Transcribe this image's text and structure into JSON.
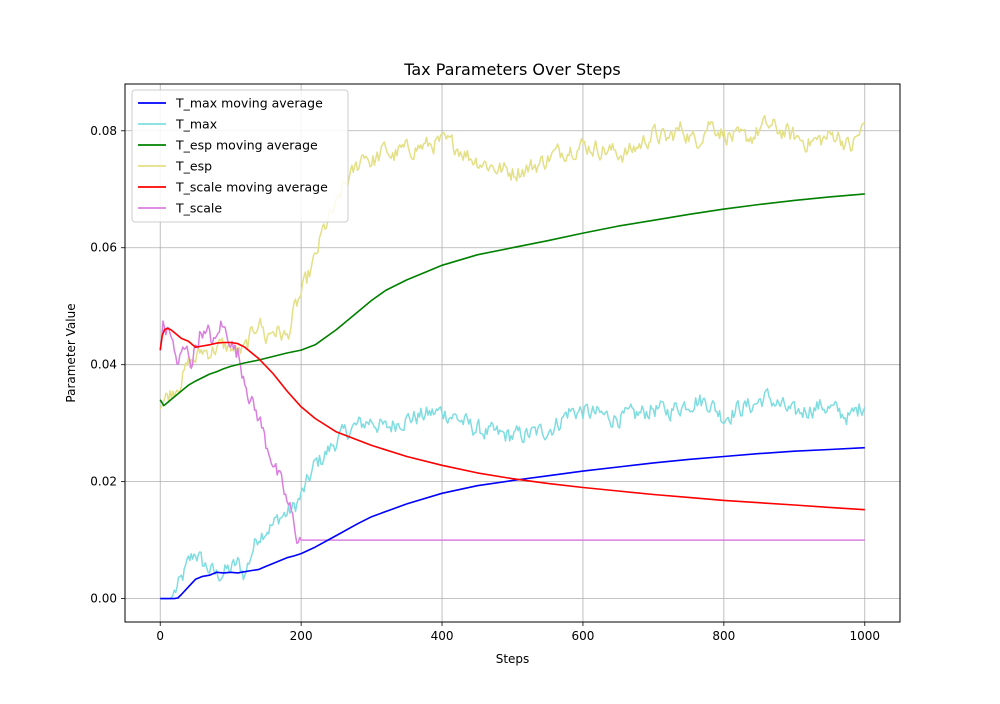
{
  "chart_data": {
    "type": "line",
    "title": "Tax Parameters Over Steps",
    "xlabel": "Steps",
    "ylabel": "Parameter Value",
    "xlim": [
      -50,
      1050
    ],
    "ylim": [
      -0.004,
      0.088
    ],
    "xticks": [
      0,
      200,
      400,
      600,
      800,
      1000
    ],
    "xtick_labels": [
      "0",
      "200",
      "400",
      "600",
      "800",
      "1000"
    ],
    "yticks": [
      0.0,
      0.02,
      0.04,
      0.06,
      0.08
    ],
    "ytick_labels": [
      "0.00",
      "0.02",
      "0.04",
      "0.06",
      "0.08"
    ],
    "grid": true,
    "legend_position": "top-left",
    "series": [
      {
        "name": "T_max moving average",
        "color": "#0000ff",
        "style": "smooth",
        "x": [
          0,
          10,
          20,
          25,
          30,
          40,
          50,
          60,
          70,
          80,
          90,
          100,
          110,
          120,
          130,
          140,
          150,
          160,
          170,
          180,
          190,
          200,
          220,
          250,
          280,
          300,
          350,
          400,
          450,
          500,
          550,
          600,
          650,
          700,
          750,
          800,
          850,
          900,
          950,
          1000
        ],
        "y": [
          0.0,
          0.0,
          0.0,
          0.0001,
          0.0007,
          0.002,
          0.0033,
          0.0038,
          0.004,
          0.0045,
          0.0044,
          0.0045,
          0.0044,
          0.0046,
          0.0048,
          0.005,
          0.0055,
          0.006,
          0.0065,
          0.007,
          0.0073,
          0.0077,
          0.0088,
          0.0108,
          0.0128,
          0.014,
          0.0162,
          0.018,
          0.0193,
          0.0202,
          0.021,
          0.0218,
          0.0225,
          0.0232,
          0.0238,
          0.0243,
          0.0248,
          0.0252,
          0.0255,
          0.0258
        ]
      },
      {
        "name": "T_max",
        "color": "#7fdde0",
        "style": "noisy",
        "x": [
          0,
          15,
          20,
          30,
          40,
          50,
          60,
          70,
          80,
          90,
          100,
          110,
          120,
          130,
          140,
          150,
          160,
          170,
          180,
          190,
          200,
          210,
          220,
          230,
          240,
          250,
          260,
          270,
          280,
          290,
          300,
          320,
          340,
          360,
          380,
          400,
          420,
          440,
          460,
          480,
          500,
          520,
          540,
          560,
          580,
          600,
          620,
          640,
          660,
          680,
          700,
          720,
          740,
          760,
          780,
          800,
          820,
          840,
          860,
          880,
          900,
          920,
          940,
          960,
          980,
          1000
        ],
        "y": [
          0.0,
          0.0,
          0.001,
          0.003,
          0.006,
          0.008,
          0.006,
          0.005,
          0.004,
          0.0045,
          0.005,
          0.006,
          0.004,
          0.008,
          0.011,
          0.012,
          0.0125,
          0.014,
          0.0145,
          0.0155,
          0.0175,
          0.02,
          0.023,
          0.024,
          0.0255,
          0.027,
          0.028,
          0.029,
          0.0295,
          0.03,
          0.0305,
          0.029,
          0.0305,
          0.031,
          0.0315,
          0.032,
          0.031,
          0.0295,
          0.0285,
          0.028,
          0.0278,
          0.028,
          0.0285,
          0.0295,
          0.032,
          0.032,
          0.0315,
          0.031,
          0.031,
          0.0315,
          0.0325,
          0.032,
          0.033,
          0.034,
          0.0335,
          0.031,
          0.0325,
          0.033,
          0.0345,
          0.033,
          0.0315,
          0.0325,
          0.033,
          0.032,
          0.031,
          0.0335
        ]
      },
      {
        "name": "T_esp moving average",
        "color": "#008000",
        "style": "smooth",
        "x": [
          0,
          5,
          10,
          20,
          30,
          40,
          50,
          60,
          70,
          80,
          90,
          100,
          120,
          140,
          160,
          180,
          200,
          220,
          250,
          280,
          300,
          320,
          350,
          380,
          400,
          450,
          500,
          550,
          600,
          650,
          700,
          750,
          800,
          850,
          900,
          950,
          1000
        ],
        "y": [
          0.034,
          0.033,
          0.0335,
          0.0345,
          0.0355,
          0.0365,
          0.0372,
          0.0378,
          0.0384,
          0.0388,
          0.0393,
          0.0397,
          0.0403,
          0.0408,
          0.0414,
          0.042,
          0.0425,
          0.0434,
          0.046,
          0.049,
          0.051,
          0.0527,
          0.0545,
          0.056,
          0.057,
          0.0588,
          0.06,
          0.0612,
          0.0625,
          0.0637,
          0.0647,
          0.0657,
          0.0666,
          0.0674,
          0.0681,
          0.0687,
          0.0692
        ]
      },
      {
        "name": "T_esp",
        "color": "#e3e085",
        "style": "noisy",
        "x": [
          0,
          10,
          20,
          30,
          40,
          50,
          60,
          70,
          80,
          90,
          100,
          110,
          120,
          130,
          140,
          150,
          160,
          170,
          180,
          190,
          200,
          210,
          220,
          230,
          240,
          250,
          260,
          270,
          280,
          290,
          300,
          310,
          320,
          330,
          340,
          360,
          380,
          400,
          420,
          440,
          460,
          480,
          500,
          520,
          540,
          560,
          580,
          600,
          620,
          640,
          660,
          680,
          700,
          720,
          740,
          760,
          780,
          800,
          820,
          840,
          860,
          880,
          900,
          920,
          940,
          960,
          980,
          1000
        ],
        "y": [
          0.0335,
          0.0345,
          0.036,
          0.0375,
          0.04,
          0.041,
          0.0425,
          0.0422,
          0.043,
          0.0432,
          0.043,
          0.042,
          0.0425,
          0.045,
          0.048,
          0.0445,
          0.046,
          0.0455,
          0.0445,
          0.049,
          0.052,
          0.055,
          0.058,
          0.0625,
          0.065,
          0.067,
          0.0705,
          0.072,
          0.074,
          0.0765,
          0.0745,
          0.0755,
          0.077,
          0.0755,
          0.0765,
          0.077,
          0.0775,
          0.078,
          0.0775,
          0.0755,
          0.0745,
          0.0735,
          0.073,
          0.0735,
          0.0745,
          0.076,
          0.077,
          0.0775,
          0.077,
          0.0765,
          0.076,
          0.0775,
          0.0795,
          0.0785,
          0.0805,
          0.078,
          0.0815,
          0.0795,
          0.0785,
          0.079,
          0.081,
          0.08,
          0.079,
          0.078,
          0.0785,
          0.0795,
          0.077,
          0.081
        ]
      },
      {
        "name": "T_scale moving average",
        "color": "#ff0000",
        "style": "smooth",
        "x": [
          0,
          3,
          6,
          10,
          15,
          20,
          30,
          40,
          50,
          60,
          70,
          80,
          90,
          100,
          110,
          120,
          140,
          160,
          180,
          200,
          220,
          250,
          300,
          350,
          400,
          450,
          500,
          550,
          600,
          650,
          700,
          750,
          800,
          850,
          900,
          950,
          1000
        ],
        "y": [
          0.0425,
          0.045,
          0.046,
          0.0462,
          0.046,
          0.0455,
          0.0445,
          0.044,
          0.043,
          0.0432,
          0.0434,
          0.0437,
          0.0438,
          0.0438,
          0.0436,
          0.043,
          0.041,
          0.0385,
          0.0355,
          0.0328,
          0.0308,
          0.0285,
          0.0262,
          0.0243,
          0.0228,
          0.0215,
          0.0205,
          0.0197,
          0.019,
          0.0184,
          0.0178,
          0.0173,
          0.0168,
          0.0164,
          0.016,
          0.0156,
          0.0152
        ]
      },
      {
        "name": "T_scale",
        "color": "#da7fe0",
        "style": "noisy",
        "x": [
          0,
          3,
          6,
          10,
          15,
          20,
          25,
          30,
          35,
          40,
          45,
          50,
          55,
          60,
          65,
          70,
          75,
          80,
          85,
          90,
          95,
          100,
          105,
          110,
          115,
          120,
          125,
          130,
          135,
          140,
          145,
          150,
          155,
          160,
          165,
          170,
          175,
          180,
          185,
          190,
          195,
          200,
          250,
          300,
          400,
          500,
          600,
          700,
          800,
          900,
          1000
        ],
        "y": [
          0.0425,
          0.047,
          0.0465,
          0.0455,
          0.046,
          0.042,
          0.04,
          0.0415,
          0.0425,
          0.042,
          0.0405,
          0.043,
          0.045,
          0.046,
          0.0445,
          0.0455,
          0.0435,
          0.044,
          0.047,
          0.046,
          0.0455,
          0.0445,
          0.0425,
          0.042,
          0.0395,
          0.038,
          0.0355,
          0.0335,
          0.032,
          0.031,
          0.029,
          0.0265,
          0.0255,
          0.0235,
          0.0215,
          0.02,
          0.0185,
          0.0165,
          0.015,
          0.0125,
          0.0105,
          0.01,
          0.01,
          0.01,
          0.01,
          0.01,
          0.01,
          0.01,
          0.01,
          0.01,
          0.01
        ]
      }
    ]
  }
}
